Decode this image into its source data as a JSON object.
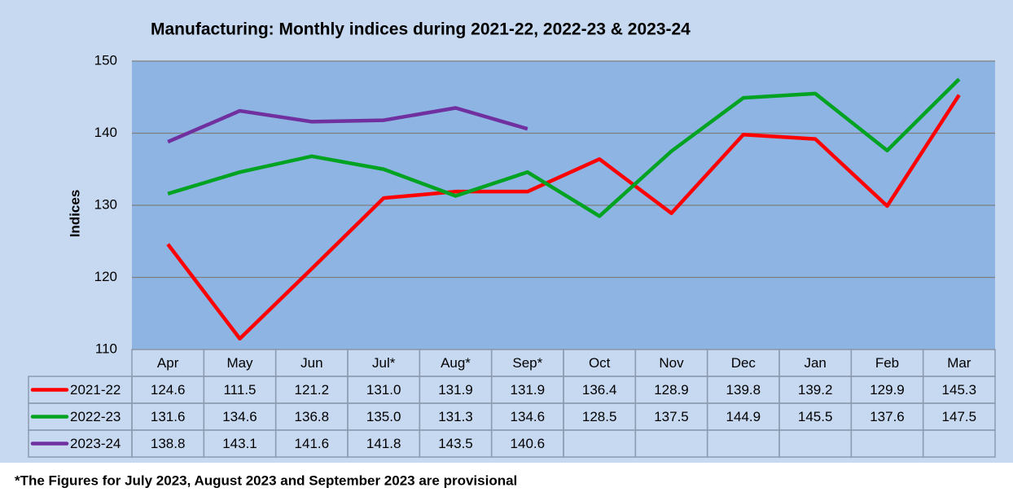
{
  "chart_data": {
    "type": "line",
    "title": "Manufacturing: Monthly indices during 2021-22, 2022-23 & 2023-24",
    "y_label": "Indices",
    "categories": [
      "Apr",
      "May",
      "Jun",
      "Jul*",
      "Aug*",
      "Sep*",
      "Oct",
      "Nov",
      "Dec",
      "Jan",
      "Feb",
      "Mar"
    ],
    "series": [
      {
        "name": "2021-22",
        "color": "#ff0000",
        "values": [
          124.6,
          111.5,
          121.2,
          131.0,
          131.9,
          131.9,
          136.4,
          128.9,
          139.8,
          139.2,
          129.9,
          145.3
        ],
        "value_labels": [
          "124.6",
          "111.5",
          "121.2",
          "131.0",
          "131.9",
          "131.9",
          "136.4",
          "128.9",
          "139.8",
          "139.2",
          "129.9",
          "145.3"
        ]
      },
      {
        "name": "2022-23",
        "color": "#00a321",
        "values": [
          131.6,
          134.6,
          136.8,
          135.0,
          131.3,
          134.6,
          128.5,
          137.5,
          144.9,
          145.5,
          137.6,
          147.5
        ],
        "value_labels": [
          "131.6",
          "134.6",
          "136.8",
          "135.0",
          "131.3",
          "134.6",
          "128.5",
          "137.5",
          "144.9",
          "145.5",
          "137.6",
          "147.5"
        ]
      },
      {
        "name": "2023-24",
        "color": "#7030a0",
        "values": [
          138.8,
          143.1,
          141.6,
          141.8,
          143.5,
          140.6,
          null,
          null,
          null,
          null,
          null,
          null
        ],
        "value_labels": [
          "138.8",
          "143.1",
          "141.6",
          "141.8",
          "143.5",
          "140.6",
          null,
          null,
          null,
          null,
          null,
          null
        ]
      }
    ],
    "ylim": [
      110,
      150
    ],
    "yticks": [
      110,
      120,
      130,
      140,
      150
    ],
    "grid": true,
    "footnote": "*The Figures for July 2023, August 2023 and September 2023 are provisional"
  }
}
